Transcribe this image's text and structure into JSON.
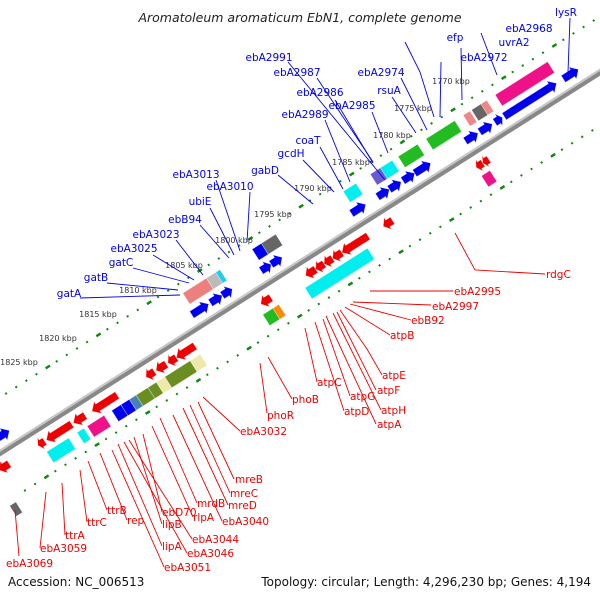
{
  "title": "Aromatoleum aromaticum EbN1, complete genome",
  "footer": {
    "accession": "Accession: NC_006513",
    "topology": "Topology: circular; Length: 4,296,230 bp; Genes: 4,194"
  },
  "colors": {
    "forward_label": "#0000ee",
    "reverse_label": "#ee0000",
    "backbone": "#888888",
    "ticks": "#118811"
  },
  "kbp_labels": [
    "1770 kbp",
    "1775 kbp",
    "1780 kbp",
    "1785 kbp",
    "1790 kbp",
    "1795 kbp",
    "1800 kbp",
    "1805 kbp",
    "1810 kbp",
    "1815 kbp",
    "1820 kbp",
    "1825 kbp"
  ],
  "forward_genes": [
    "lysR",
    "ebA2968",
    "efp",
    "uvrA2",
    "ebA2972",
    "ebA2974",
    "rsuA",
    "ebA2991",
    "ebA2987",
    "ebA2986",
    "ebA2985",
    "ebA2989",
    "coaT",
    "gcdH",
    "gabD",
    "ebA3013",
    "ebA3010",
    "ubiE",
    "ebB94",
    "ebA3023",
    "ebA3025",
    "gatC",
    "gatB",
    "gatA"
  ],
  "reverse_genes": [
    "rdgC",
    "ebA2995",
    "ebA2997",
    "ebB92",
    "atpB",
    "atpE",
    "atpF",
    "atpH",
    "atpA",
    "atpG",
    "atpD",
    "atpC",
    "phoB",
    "phoR",
    "ebA3032",
    "mreB",
    "mreC",
    "mreD",
    "ebA3040",
    "mrdB",
    "rlpA",
    "ebD70",
    "lipB",
    "ebA3044",
    "ebA3046",
    "lipA",
    "ebA3051",
    "rep",
    "ttrB",
    "ttrC",
    "ttrA",
    "ebA3059",
    "ebA3069"
  ]
}
